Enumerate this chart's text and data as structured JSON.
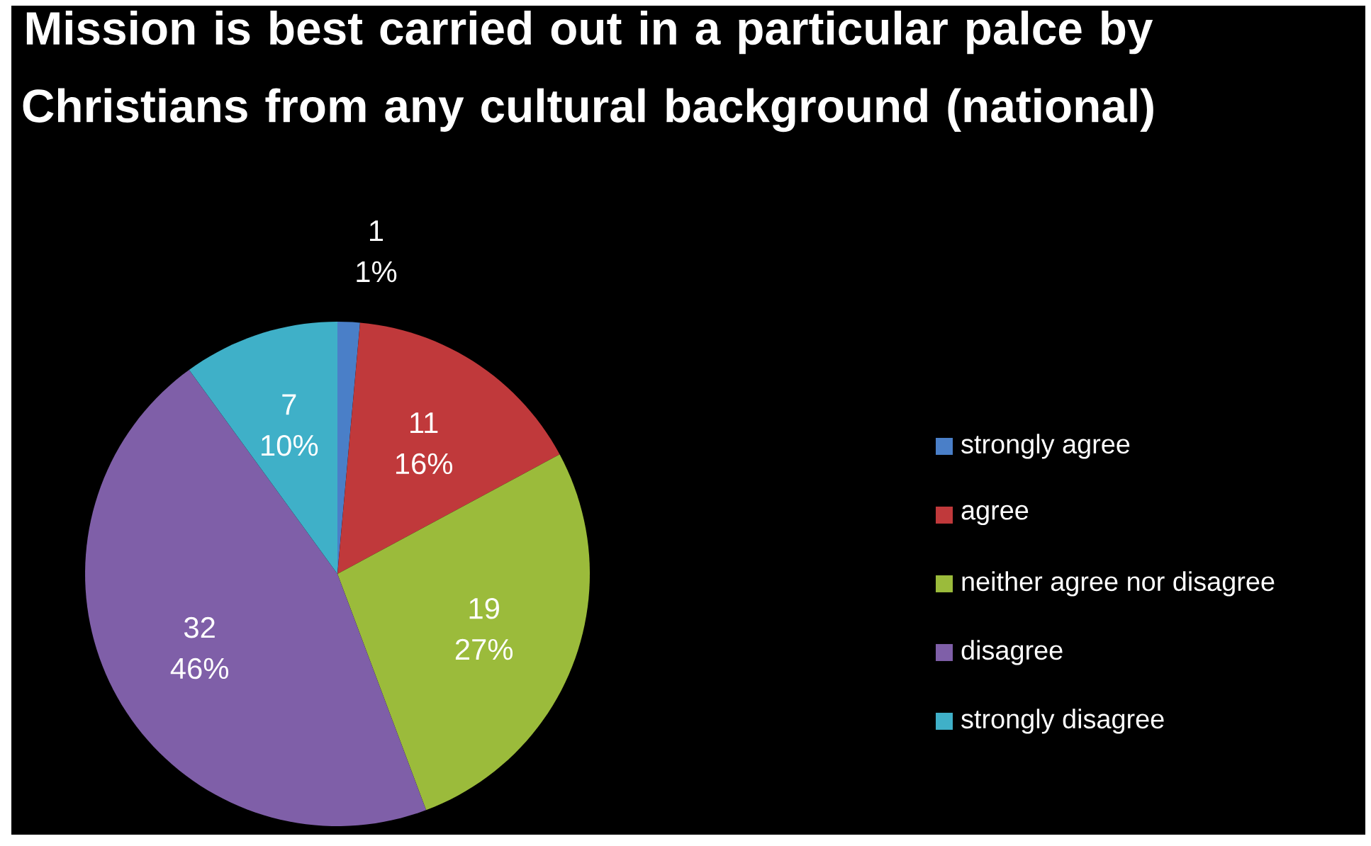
{
  "chart_data": {
    "type": "pie",
    "title": "Mission is best carried out in a particular palce by Christians from any cultural background (national)",
    "categories": [
      "strongly agree",
      "agree",
      "neither agree nor disagree",
      "disagree",
      "strongly disagree"
    ],
    "values": [
      1,
      11,
      19,
      32,
      7
    ],
    "value_labels": [
      "1 1%",
      "11 16%",
      "19 27%",
      "32 46%",
      "7 10%"
    ],
    "colors": [
      "#4a7fc8",
      "#c0393b",
      "#9bbb3b",
      "#7f5fa8",
      "#3fb0c8"
    ],
    "legend": "right"
  }
}
